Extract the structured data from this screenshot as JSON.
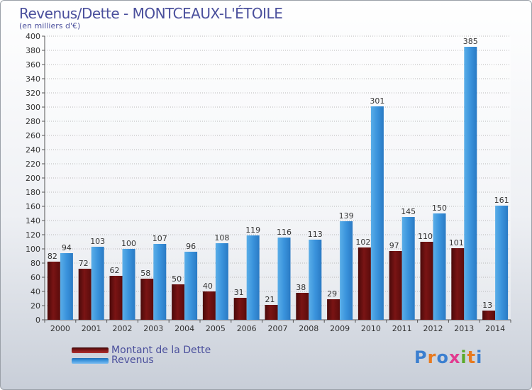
{
  "title": "Revenus/Dette - MONTCEAUX-L'ÉTOILE",
  "subtitle": "(en milliers d'€)",
  "legend": {
    "dette_label": "Montant de la Dette",
    "revenus_label": "Revenus"
  },
  "logo": {
    "text": "Proxiti",
    "colors": [
      "#3b7fd0",
      "#e87a1f",
      "#3b7fd0",
      "#e23a8f",
      "#5aaa2a",
      "#e87a1f",
      "#3b7fd0"
    ]
  },
  "colors": {
    "dette": "#7a1414",
    "revenus": "#3a93dc",
    "axis_text": "#333333",
    "grid": "#b8b8b8"
  },
  "chart_data": {
    "type": "bar",
    "title": "Revenus/Dette - MONTCEAUX-L'ÉTOILE",
    "subtitle": "(en milliers d'€)",
    "categories": [
      "2000",
      "2001",
      "2002",
      "2003",
      "2004",
      "2005",
      "2006",
      "2007",
      "2008",
      "2009",
      "2010",
      "2011",
      "2012",
      "2013",
      "2014"
    ],
    "series": [
      {
        "name": "Montant de la Dette",
        "values": [
          82,
          72,
          62,
          58,
          50,
          40,
          31,
          21,
          38,
          29,
          102,
          97,
          110,
          101,
          13
        ]
      },
      {
        "name": "Revenus",
        "values": [
          94,
          103,
          100,
          107,
          96,
          108,
          119,
          116,
          113,
          139,
          301,
          145,
          150,
          385,
          161
        ]
      }
    ],
    "ylim": [
      0,
      400
    ],
    "yticks": [
      0,
      20,
      40,
      60,
      80,
      100,
      120,
      140,
      160,
      180,
      200,
      220,
      240,
      260,
      280,
      300,
      320,
      340,
      360,
      380,
      400
    ],
    "grid": true,
    "legend_position": "bottom-left"
  }
}
